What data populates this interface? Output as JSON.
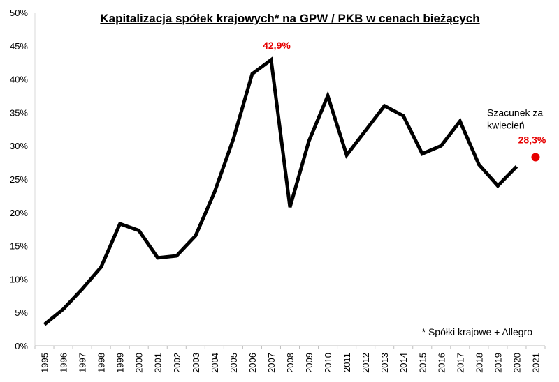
{
  "chart_data": {
    "type": "line",
    "title": "Kapitalizacja spółek krajowych* na GPW / PKB w cenach bieżących",
    "xlabel": "",
    "ylabel": "",
    "categories": [
      "1995",
      "1996",
      "1997",
      "1998",
      "1999",
      "2000",
      "2001",
      "2002",
      "2003",
      "2004",
      "2005",
      "2006",
      "2007",
      "2008",
      "2009",
      "2010",
      "2011",
      "2012",
      "2013",
      "2014",
      "2015",
      "2016",
      "2017",
      "2018",
      "2019",
      "2020",
      "2021"
    ],
    "series": [
      {
        "values": [
          3.2,
          5.5,
          8.5,
          11.8,
          18.3,
          17.3,
          13.2,
          13.5,
          16.5,
          23.0,
          31.0,
          40.8,
          42.9,
          20.8,
          30.7,
          37.5,
          28.6,
          32.3,
          36.0,
          34.5,
          28.8,
          30.0,
          33.7,
          27.2,
          24.0,
          26.9,
          null
        ],
        "color": "#000000"
      }
    ],
    "estimate": {
      "category": "2021",
      "value": 28.3,
      "color": "#e60000"
    },
    "ylim": [
      0,
      50
    ],
    "ytick_step": 5,
    "ytick_suffix": "%",
    "grid": false,
    "annotations": {
      "peak_label": "42,9%",
      "estimate_label": "28,3%",
      "estimate_note_line1": "Szacunek za",
      "estimate_note_line2": "kwiecień",
      "footnote": "* Spółki krajowe + Allegro"
    }
  }
}
